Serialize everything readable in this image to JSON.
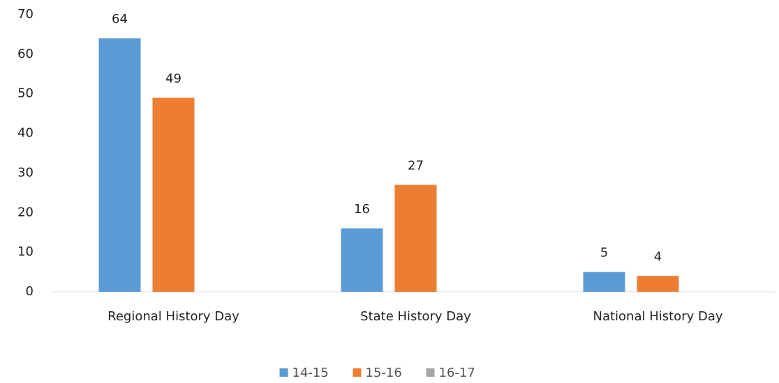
{
  "chart_data": {
    "type": "bar",
    "categories": [
      "Regional History Day",
      "State History Day",
      "National History Day"
    ],
    "series": [
      {
        "name": "14-15",
        "color": "#5b9bd5",
        "values": [
          64,
          16,
          5
        ]
      },
      {
        "name": "15-16",
        "color": "#ed7d31",
        "values": [
          49,
          27,
          4
        ]
      },
      {
        "name": "16-17",
        "color": "#a5a5a5",
        "values": [
          null,
          null,
          null
        ]
      }
    ],
    "ylim": [
      0,
      70
    ],
    "yticks": [
      0,
      10,
      20,
      30,
      40,
      50,
      60,
      70
    ],
    "grid": false,
    "legend": "bottom"
  }
}
